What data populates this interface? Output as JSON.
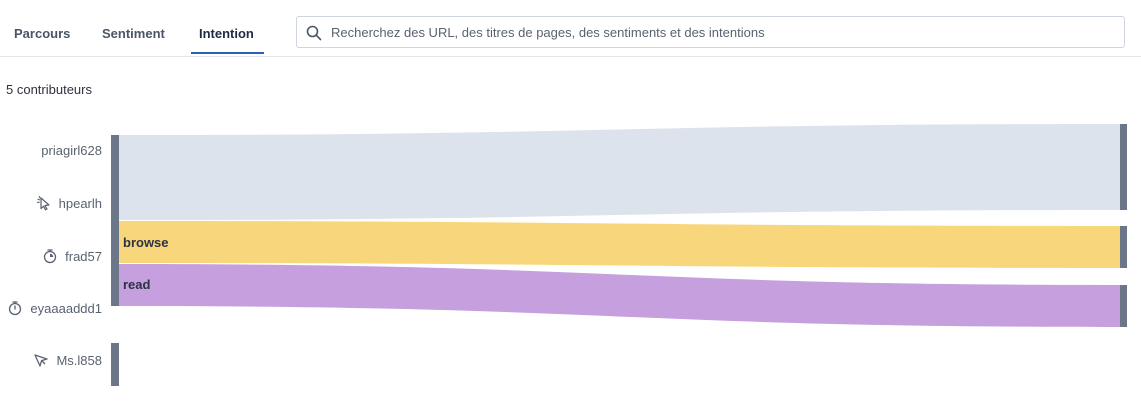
{
  "tabs": [
    {
      "label": "Parcours",
      "active": false
    },
    {
      "label": "Sentiment",
      "active": false
    },
    {
      "label": "Intention",
      "active": true
    }
  ],
  "search": {
    "placeholder": "Recherchez des URL, des titres de pages, des sentiments et des intentions",
    "value": ""
  },
  "contributors_count_label": "5 contributeurs",
  "contributors": [
    {
      "name": "priagirl628",
      "icon": "none"
    },
    {
      "name": "hpearlh",
      "icon": "cursor-click-icon"
    },
    {
      "name": "frad57",
      "icon": "stopwatch-icon"
    },
    {
      "name": "eyaaaaddd1",
      "icon": "stopwatch-icon"
    },
    {
      "name": "Ms.l858",
      "icon": "cursor-arrow-icon"
    }
  ],
  "flows": [
    {
      "label": "",
      "color": "#dce3ec"
    },
    {
      "label": "browse",
      "color": "#f8d77c"
    },
    {
      "label": "read",
      "color": "#c59fde"
    }
  ],
  "colors": {
    "accent": "#2f5fb3",
    "node": "#6b7788"
  }
}
